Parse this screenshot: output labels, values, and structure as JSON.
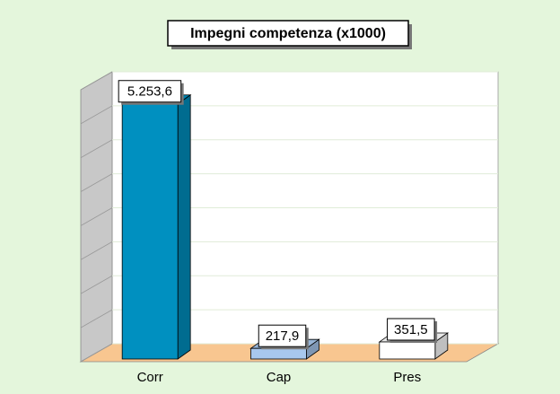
{
  "chart_data": {
    "type": "bar3d",
    "title": "Impegni competenza (x1000)",
    "categories": [
      "Corr",
      "Cap",
      "Pres"
    ],
    "values": [
      5253.6,
      217.9,
      351.5
    ],
    "value_labels": [
      "5.253,6",
      "217,9",
      "351,5"
    ],
    "colors": [
      "#0090c0",
      "#a8c8ee",
      "#ffffff"
    ],
    "ylim": [
      0,
      5600
    ],
    "yticks": [
      0,
      700,
      1400,
      2100,
      2800,
      3500,
      4200,
      4900,
      5600
    ],
    "grid": true
  }
}
